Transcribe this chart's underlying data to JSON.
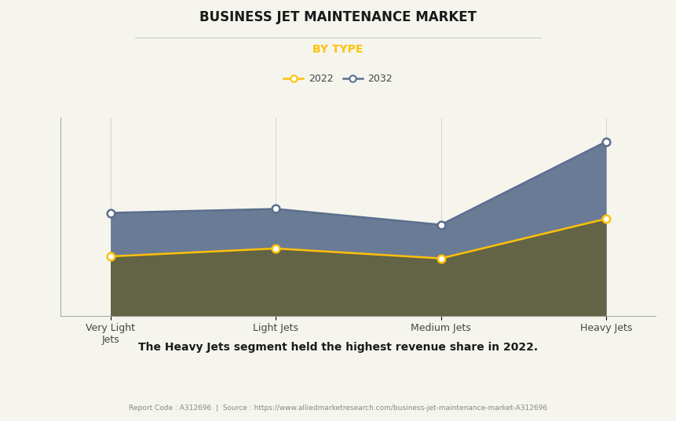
{
  "title": "BUSINESS JET MAINTENANCE MARKET",
  "subtitle": "BY TYPE",
  "categories": [
    "Very Light\nJets",
    "Light Jets",
    "Medium Jets",
    "Heavy Jets"
  ],
  "series_2022": [
    3.0,
    3.4,
    2.9,
    4.9
  ],
  "series_2032": [
    5.2,
    5.4,
    4.6,
    8.8
  ],
  "color_2022": "#FFC107",
  "color_2032": "#5B6E8C",
  "fill_2022": "#636345",
  "fill_2032": "#5B6E8C",
  "fill_2022_alpha": 1.0,
  "fill_2032_alpha": 0.9,
  "background_color": "#F5F5EE",
  "plot_bg_color": "#F5F5EE",
  "title_color": "#1A1A1A",
  "subtitle_color": "#FFC107",
  "legend_2022": "2022",
  "legend_2032": "2032",
  "annotation": "The Heavy Jets segment held the highest revenue share in 2022.",
  "footer": "Report Code : A312696  |  Source : https://www.alliedmarketresearch.com/business-jet-maintenance-market-A312696",
  "ylim": [
    0,
    10
  ],
  "grid_color": "#D5D5CC",
  "marker_size": 7,
  "line_width": 1.8
}
